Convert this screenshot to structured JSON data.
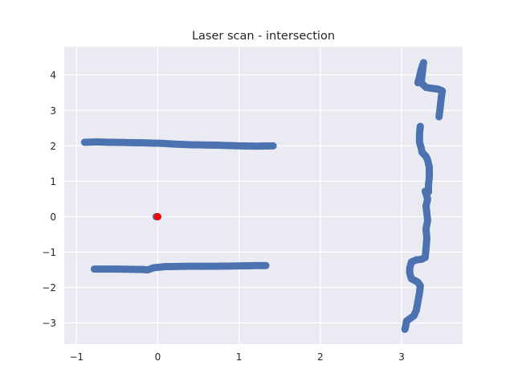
{
  "chart_data": {
    "type": "scatter",
    "title": "Laser scan - intersection",
    "xlabel": "",
    "ylabel": "",
    "xlim": [
      -1.15,
      3.75
    ],
    "ylim": [
      -3.6,
      4.8
    ],
    "xticks": [
      -1,
      0,
      1,
      2,
      3
    ],
    "xtick_labels": [
      "−1",
      "0",
      "1",
      "2",
      "3"
    ],
    "yticks": [
      -3,
      -2,
      -1,
      0,
      1,
      2,
      3,
      4
    ],
    "ytick_labels": [
      "−3",
      "−2",
      "−1",
      "0",
      "1",
      "2",
      "3",
      "4"
    ],
    "grid": true,
    "legend": "none",
    "series": [
      {
        "color": "#4c72b0",
        "segments": [
          [
            [
              -0.9,
              2.1
            ],
            [
              -0.75,
              2.11
            ],
            [
              -0.6,
              2.1
            ],
            [
              -0.3,
              2.09
            ],
            [
              -0.1,
              2.08
            ],
            [
              0.05,
              2.07
            ],
            [
              0.2,
              2.05
            ],
            [
              0.4,
              2.03
            ],
            [
              0.7,
              2.02
            ],
            [
              1.0,
              2.0
            ],
            [
              1.2,
              1.99
            ],
            [
              1.42,
              2.0
            ]
          ],
          [
            [
              -0.78,
              -1.48
            ],
            [
              -0.5,
              -1.48
            ],
            [
              -0.2,
              -1.49
            ],
            [
              -0.12,
              -1.5
            ],
            [
              -0.05,
              -1.44
            ],
            [
              0.1,
              -1.41
            ],
            [
              0.4,
              -1.4
            ],
            [
              0.7,
              -1.4
            ],
            [
              1.0,
              -1.39
            ],
            [
              1.2,
              -1.38
            ],
            [
              1.33,
              -1.38
            ]
          ],
          [
            [
              -0.02,
              0.0
            ],
            [
              0.0,
              0.0
            ]
          ],
          [
            [
              3.2,
              3.78
            ],
            [
              3.22,
              3.95
            ],
            [
              3.24,
              4.15
            ],
            [
              3.27,
              4.35
            ],
            [
              3.24,
              3.78
            ],
            [
              3.3,
              3.65
            ],
            [
              3.38,
              3.62
            ],
            [
              3.45,
              3.6
            ],
            [
              3.5,
              3.55
            ],
            [
              3.49,
              3.4
            ],
            [
              3.48,
              3.2
            ],
            [
              3.47,
              3.0
            ],
            [
              3.46,
              2.82
            ]
          ],
          [
            [
              3.23,
              2.55
            ],
            [
              3.22,
              2.35
            ],
            [
              3.22,
              2.1
            ],
            [
              3.24,
              1.95
            ],
            [
              3.25,
              1.82
            ],
            [
              3.3,
              1.7
            ],
            [
              3.32,
              1.6
            ],
            [
              3.34,
              1.4
            ],
            [
              3.34,
              1.1
            ],
            [
              3.33,
              0.9
            ],
            [
              3.33,
              0.7
            ],
            [
              3.29,
              0.72
            ],
            [
              3.32,
              0.5
            ],
            [
              3.3,
              0.3
            ],
            [
              3.31,
              0.1
            ],
            [
              3.32,
              -0.1
            ],
            [
              3.3,
              -0.35
            ],
            [
              3.31,
              -0.6
            ],
            [
              3.3,
              -0.9
            ],
            [
              3.29,
              -1.15
            ],
            [
              3.25,
              -1.2
            ],
            [
              3.18,
              -1.22
            ],
            [
              3.12,
              -1.28
            ],
            [
              3.1,
              -1.45
            ],
            [
              3.1,
              -1.6
            ],
            [
              3.12,
              -1.75
            ],
            [
              3.2,
              -1.85
            ],
            [
              3.23,
              -1.95
            ],
            [
              3.22,
              -2.15
            ],
            [
              3.2,
              -2.4
            ],
            [
              3.18,
              -2.65
            ],
            [
              3.15,
              -2.8
            ],
            [
              3.1,
              -2.88
            ],
            [
              3.06,
              -2.95
            ],
            [
              3.05,
              -3.1
            ],
            [
              3.04,
              -3.18
            ]
          ]
        ]
      },
      {
        "color": "#ff0000",
        "points": [
          [
            0.0,
            0.0
          ]
        ]
      }
    ]
  }
}
